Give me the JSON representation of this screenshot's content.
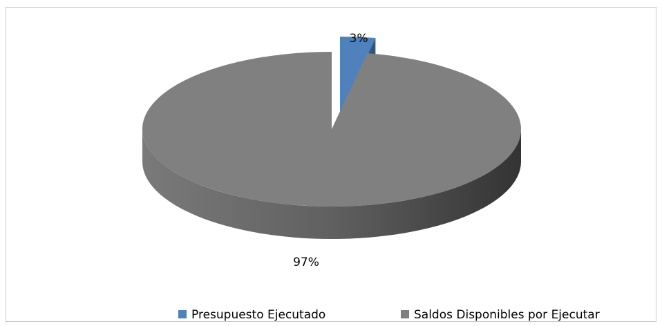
{
  "chart_data": {
    "type": "pie",
    "categories": [
      "Presupuesto Ejecutado",
      "Saldos Disponibles por Ejecutar"
    ],
    "values": [
      3,
      97
    ],
    "value_labels": [
      "3%",
      "97%"
    ],
    "colors": [
      "#4f81bd",
      "#808080"
    ],
    "legend": "bottom"
  }
}
